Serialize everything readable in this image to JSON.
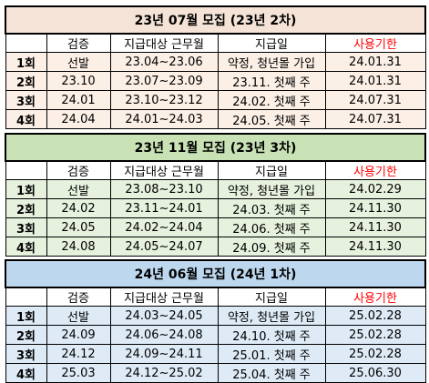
{
  "headers": {
    "verify": "검증",
    "work_months": "지급대상 근무월",
    "pay_date": "지급일",
    "expire": "사용기한"
  },
  "blocks": [
    {
      "title": "23년 07월 모집 (23년 2차)",
      "rows": [
        {
          "round": "1회",
          "verify": "선발",
          "work_months": "23.04~23.06",
          "pay_date": "약정, 청년몰 가입",
          "expire": "24.01.31"
        },
        {
          "round": "2회",
          "verify": "23.10",
          "work_months": "23.07~23.09",
          "pay_date": "23.11. 첫째 주",
          "expire": "24.01.31"
        },
        {
          "round": "3회",
          "verify": "24.01",
          "work_months": "23.10~23.12",
          "pay_date": "24.02. 첫째 주",
          "expire": "24.07.31"
        },
        {
          "round": "4회",
          "verify": "24.04",
          "work_months": "24.01~24.03",
          "pay_date": "24.05. 첫째 주",
          "expire": "24.07.31"
        }
      ]
    },
    {
      "title": "23년 11월 모집 (23년 3차)",
      "rows": [
        {
          "round": "1회",
          "verify": "선발",
          "work_months": "23.08~23.10",
          "pay_date": "약정, 청년몰 가입",
          "expire": "24.02.29"
        },
        {
          "round": "2회",
          "verify": "24.02",
          "work_months": "23.11~24.01",
          "pay_date": "24.03. 첫째 주",
          "expire": "24.11.30"
        },
        {
          "round": "3회",
          "verify": "24.05",
          "work_months": "24.02~24.04",
          "pay_date": "24.06. 첫째 주",
          "expire": "24.11.30"
        },
        {
          "round": "4회",
          "verify": "24.08",
          "work_months": "24.05~24.07",
          "pay_date": "24.09. 첫째 주",
          "expire": "24.11.30"
        }
      ]
    },
    {
      "title": "24년 06월 모집 (24년 1차)",
      "rows": [
        {
          "round": "1회",
          "verify": "선발",
          "work_months": "24.03~24.05",
          "pay_date": "약정, 청년몰 가입",
          "expire": "25.02.28"
        },
        {
          "round": "2회",
          "verify": "24.09",
          "work_months": "24.06~24.08",
          "pay_date": "24.10. 첫째 주",
          "expire": "25.02.28"
        },
        {
          "round": "3회",
          "verify": "24.12",
          "work_months": "24.09~24.11",
          "pay_date": "25.01. 첫째 주",
          "expire": "25.02.28"
        },
        {
          "round": "4회",
          "verify": "25.03",
          "work_months": "24.12~25.02",
          "pay_date": "25.04. 첫째 주",
          "expire": "25.06.30"
        }
      ]
    }
  ],
  "colors": {
    "block1_title": "#f4e3d6",
    "block1_body": "#fbefe6",
    "block2_title": "#c9e2b5",
    "block2_body": "#e7f2de",
    "block3_title": "#bdd7ee",
    "block3_body": "#deebf7",
    "expire_header": "#ff0000"
  }
}
